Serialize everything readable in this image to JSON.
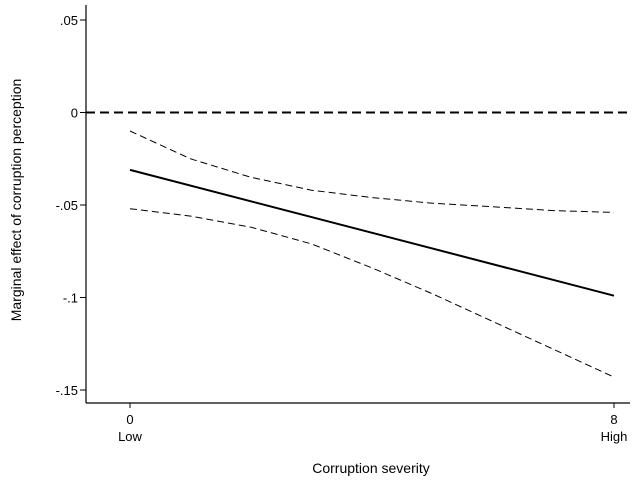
{
  "chart_data": {
    "type": "line",
    "title": "",
    "xlabel": "Corruption severity",
    "ylabel": "Marginal effect of corruption perception",
    "xlim": [
      0,
      8
    ],
    "ylim": [
      -0.15,
      0.05
    ],
    "x_ticks": [
      {
        "value": 0,
        "label": "0",
        "sublabel": "Low"
      },
      {
        "value": 8,
        "label": "8",
        "sublabel": "High"
      }
    ],
    "y_ticks": [
      {
        "value": 0.05,
        "label": ".05"
      },
      {
        "value": 0,
        "label": "0"
      },
      {
        "value": -0.05,
        "label": "-.05"
      },
      {
        "value": -0.1,
        "label": "-.1"
      },
      {
        "value": -0.15,
        "label": "-.15"
      }
    ],
    "reference_line": {
      "y": 0,
      "style": "dashed"
    },
    "series": [
      {
        "role": "estimate",
        "style": "solid",
        "x": [
          0,
          8
        ],
        "y": [
          -0.031,
          -0.099
        ]
      },
      {
        "role": "upper-bound",
        "style": "dashed",
        "x": [
          0,
          1,
          2,
          3,
          4,
          5,
          6,
          7,
          8
        ],
        "y": [
          -0.01,
          -0.025,
          -0.035,
          -0.042,
          -0.046,
          -0.049,
          -0.051,
          -0.053,
          -0.054
        ]
      },
      {
        "role": "lower-bound",
        "style": "dashed",
        "x": [
          0,
          1,
          2,
          3,
          4,
          5,
          6,
          7,
          8
        ],
        "y": [
          -0.052,
          -0.056,
          -0.062,
          -0.071,
          -0.084,
          -0.098,
          -0.113,
          -0.128,
          -0.143
        ]
      }
    ],
    "grid": false,
    "legend": "none"
  }
}
